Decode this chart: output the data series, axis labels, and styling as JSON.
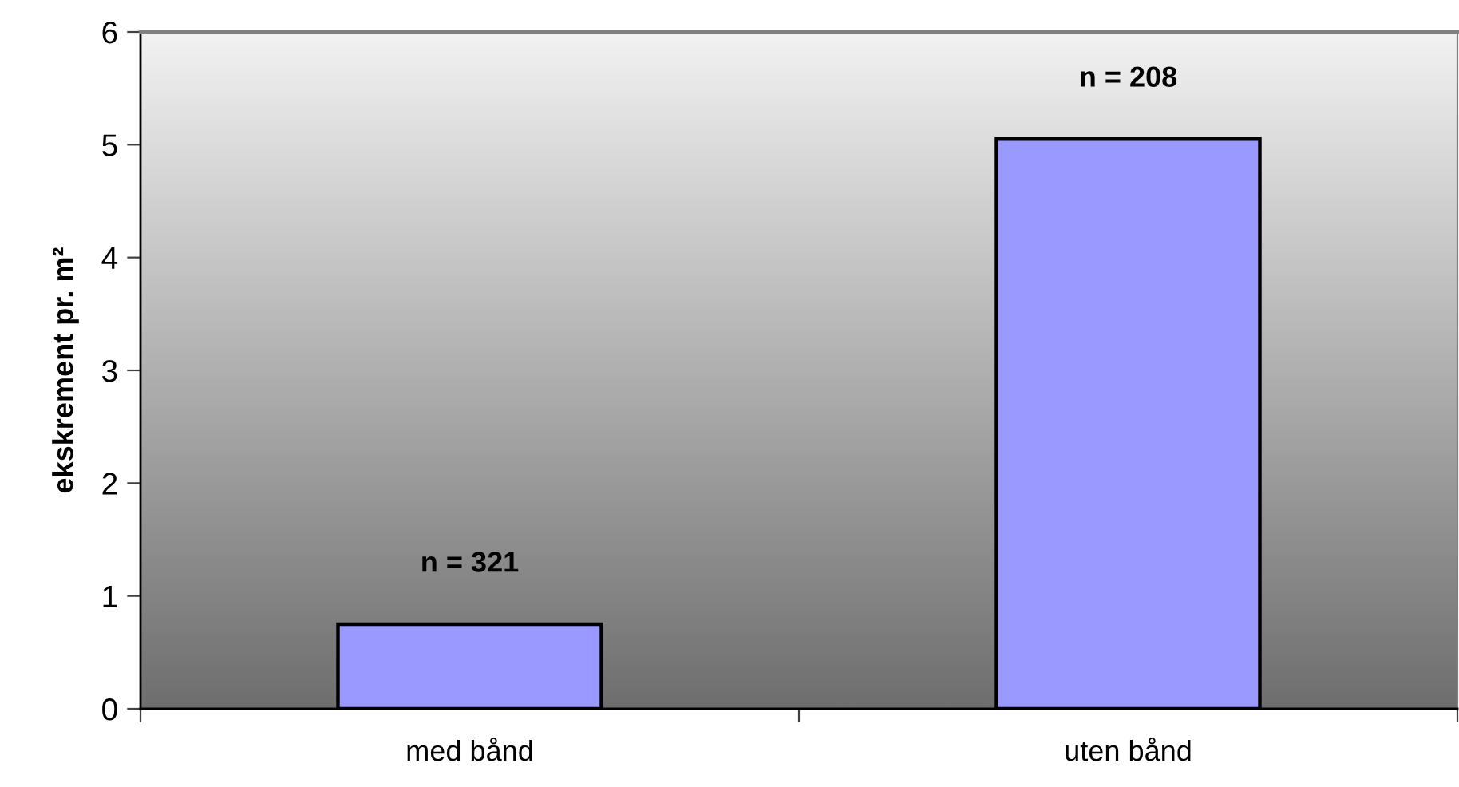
{
  "chart_data": {
    "type": "bar",
    "ylabel": "ekskrement pr. m²",
    "categories": [
      "med bånd",
      "uten bånd"
    ],
    "values": [
      0.75,
      5.05
    ],
    "color": "#9999ff",
    "ylim": [
      0,
      6
    ],
    "yticks": [
      0,
      1,
      2,
      3,
      4,
      5,
      6
    ],
    "annotations": [
      "n = 321",
      "n = 208"
    ]
  }
}
